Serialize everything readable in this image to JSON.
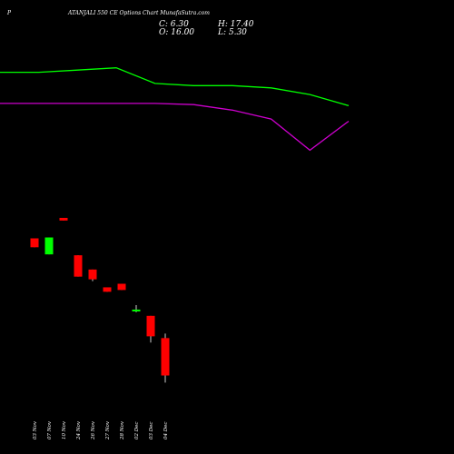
{
  "header": {
    "prefix": "P",
    "title": "ATANJALI 550  CE Options  Chart MunafaSutra.com",
    "close_label": "C: 6.30",
    "high_label": "H: 17.40",
    "open_label": "O: 16.00",
    "low_label": "L: 5.30"
  },
  "colors": {
    "background": "#000000",
    "up_candle": "#00ff00",
    "down_candle": "#ff0000",
    "ma_fast": "#00ff00",
    "ma_slow": "#cc00cc",
    "text": "#ffffff"
  },
  "chart_data": {
    "type": "candlestick",
    "x": [
      "03 Nov",
      "07 Nov",
      "10 Nov",
      "24 Nov",
      "26 Nov",
      "27 Nov",
      "28 Nov",
      "02 Dec",
      "03 Dec",
      "04 Dec"
    ],
    "candles": [
      {
        "date": "03 Nov",
        "open": 47.4,
        "high": 47.4,
        "low": 43.4,
        "close": 43.4
      },
      {
        "date": "07 Nov",
        "open": 40.2,
        "high": 47.8,
        "low": 40.2,
        "close": 47.8
      },
      {
        "date": "10 Nov",
        "open": 56.6,
        "high": 56.6,
        "low": 55.4,
        "close": 55.4
      },
      {
        "date": "24 Nov",
        "open": 39.8,
        "high": 39.8,
        "low": 30.2,
        "close": 30.2
      },
      {
        "date": "26 Nov",
        "open": 33.4,
        "high": 33.4,
        "low": 28.2,
        "close": 29.0
      },
      {
        "date": "27 Nov",
        "open": 25.4,
        "high": 25.4,
        "low": 23.4,
        "close": 23.4
      },
      {
        "date": "28 Nov",
        "open": 27.0,
        "high": 27.0,
        "low": 24.2,
        "close": 24.2
      },
      {
        "date": "02 Dec",
        "open": 14.6,
        "high": 17.4,
        "low": 14.2,
        "close": 15.4
      },
      {
        "date": "03 Dec",
        "open": 12.6,
        "high": 12.6,
        "low": 0.6,
        "close": 3.4
      },
      {
        "date": "04 Dec",
        "open": 2.6,
        "high": 4.6,
        "low": -17.4,
        "close": -14.2
      }
    ],
    "ma_fast": [
      122,
      122,
      123,
      124,
      117,
      116,
      116,
      115,
      112,
      107
    ],
    "ma_slow": [
      108,
      108,
      108,
      108,
      108,
      107.5,
      105,
      101,
      87,
      100
    ],
    "ylim": [
      -25,
      130
    ]
  }
}
